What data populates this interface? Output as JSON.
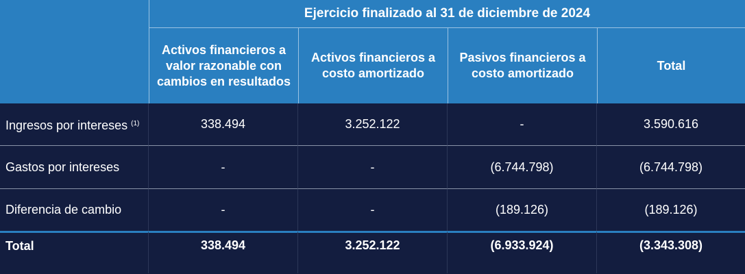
{
  "header": {
    "title": "Ejercicio finalizado al 31 de diciembre de 2024",
    "columns": [
      "Activos financieros a valor razonable con cambios en resultados",
      "Activos financieros a costo amortizado",
      "Pasivos financieros a costo amortizado",
      "Total"
    ]
  },
  "rows": [
    {
      "label": "Ingresos por intereses",
      "note": "(1)",
      "values": [
        "338.494",
        "3.252.122",
        "-",
        "3.590.616"
      ]
    },
    {
      "label": "Gastos por intereses",
      "values": [
        "-",
        "-",
        "(6.744.798)",
        "(6.744.798)"
      ]
    },
    {
      "label": "Diferencia de cambio",
      "values": [
        "-",
        "-",
        "(189.126)",
        "(189.126)"
      ]
    }
  ],
  "total": {
    "label": "Total",
    "values": [
      "338.494",
      "3.252.122",
      "(6.933.924)",
      "(3.343.308)"
    ]
  },
  "colors": {
    "header": "#2a7fc0",
    "body": "#131d3f"
  }
}
